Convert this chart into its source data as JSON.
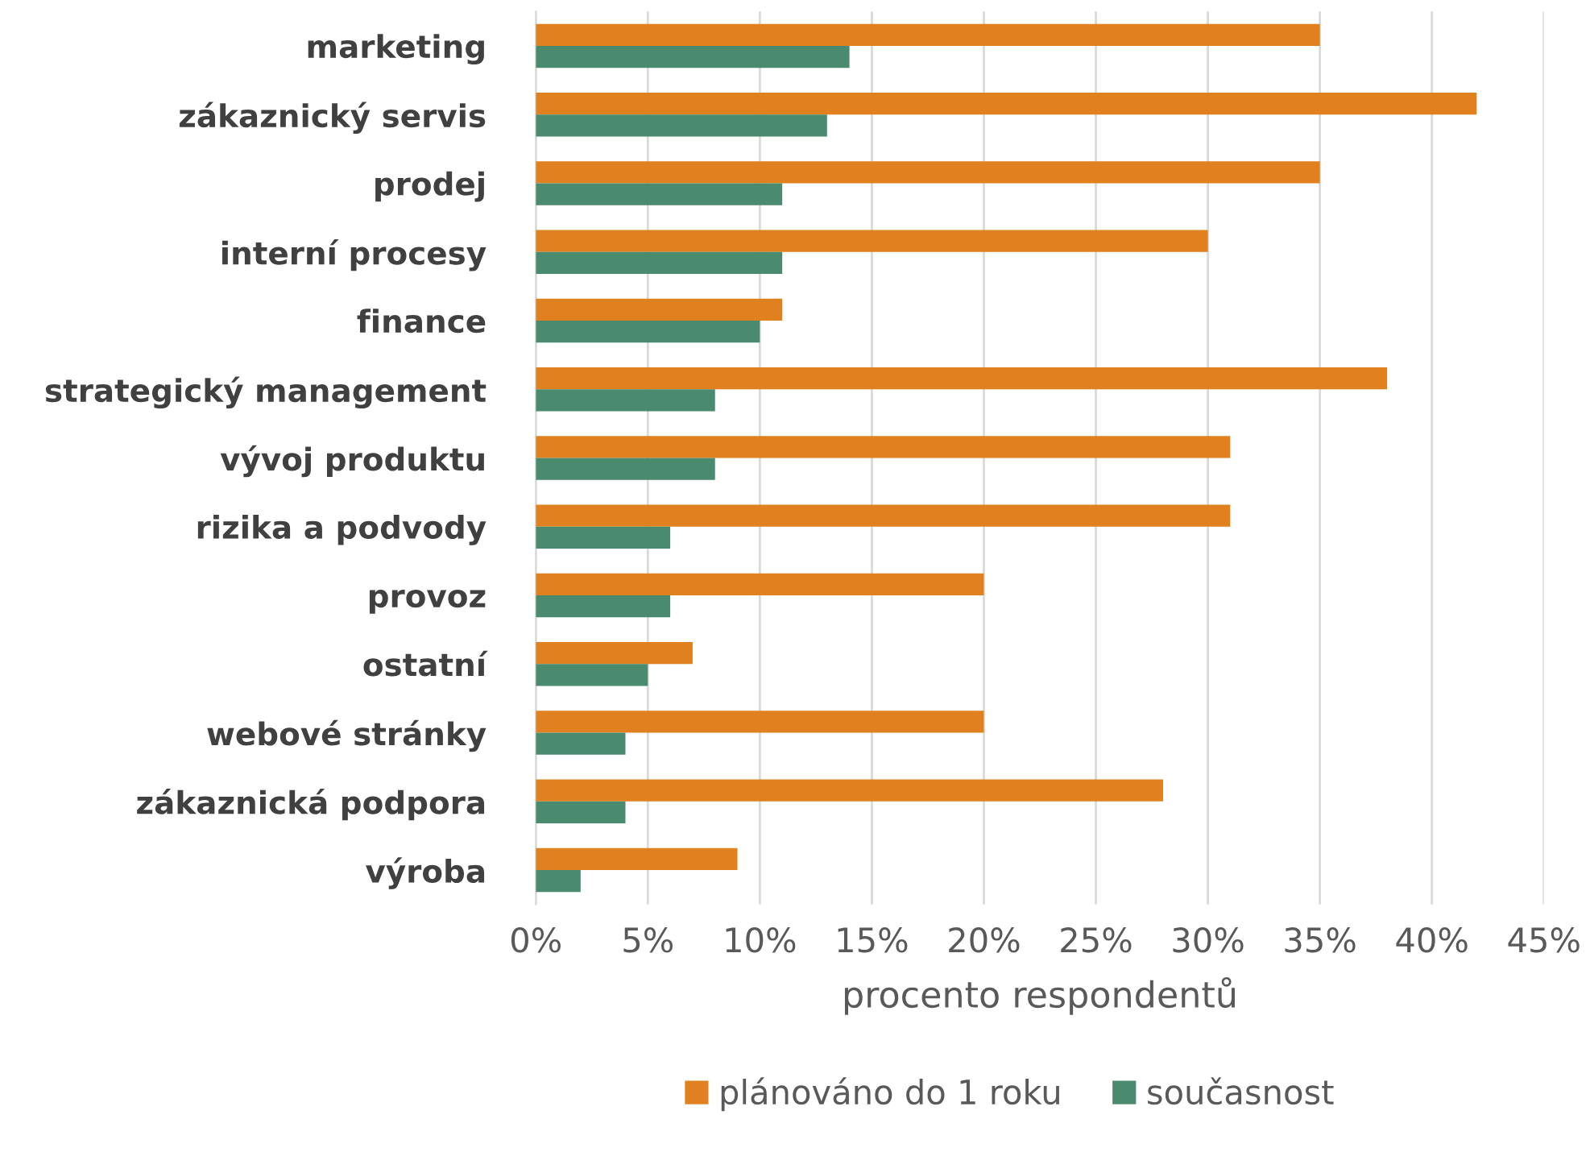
{
  "chart_data": {
    "type": "bar",
    "orientation": "horizontal",
    "xlabel": "procento respondentů",
    "categories": [
      "marketing",
      "zákaznický servis",
      "prodej",
      "interní procesy",
      "finance",
      "strategický management",
      "vývoj produktu",
      "rizika a podvody",
      "provoz",
      "ostatní",
      "webové stránky",
      "zákaznická podpora",
      "výroba"
    ],
    "series": [
      {
        "name": "plánováno do 1 roku",
        "color": "#e0801e",
        "values": [
          35,
          42,
          35,
          30,
          11,
          38,
          31,
          31,
          20,
          7,
          20,
          28,
          9
        ]
      },
      {
        "name": "současnost",
        "color": "#4a8a6e",
        "values": [
          14,
          13,
          11,
          11,
          10,
          8,
          8,
          6,
          6,
          5,
          4,
          4,
          2
        ]
      }
    ],
    "xlim": [
      0,
      45
    ],
    "xticks": [
      {
        "value": 0,
        "label": "0%"
      },
      {
        "value": 5,
        "label": "5%"
      },
      {
        "value": 10,
        "label": "10%"
      },
      {
        "value": 15,
        "label": "15%"
      },
      {
        "value": 20,
        "label": "20%"
      },
      {
        "value": 25,
        "label": "25%"
      },
      {
        "value": 30,
        "label": "30%"
      },
      {
        "value": 35,
        "label": "35%"
      },
      {
        "value": 40,
        "label": "40%"
      },
      {
        "value": 45,
        "label": "45%"
      }
    ],
    "grid": "x",
    "legend": "bottom"
  }
}
